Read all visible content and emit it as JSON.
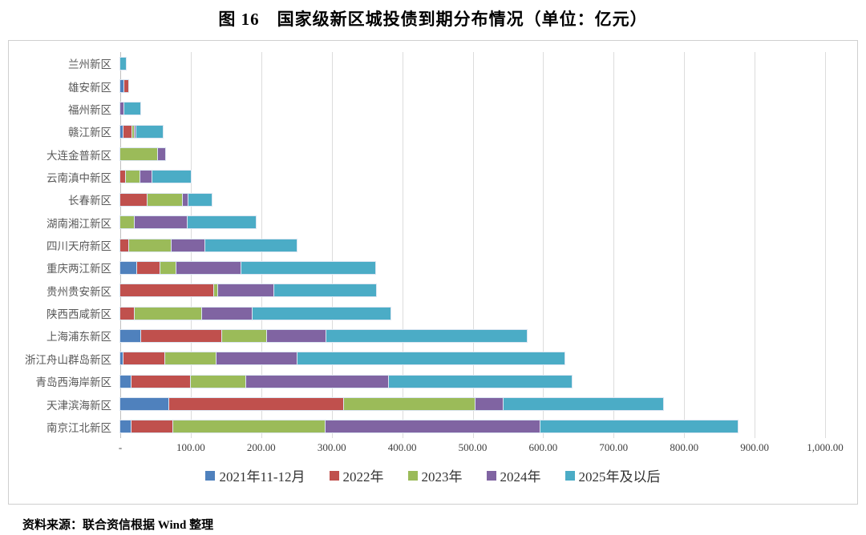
{
  "title": "图 16　国家级新区城投债到期分布情况（单位：亿元）",
  "source_note": "资料来源：联合资信根据 Wind 整理",
  "colors": {
    "series_blue": "#4F81BD",
    "series_red": "#C0504D",
    "series_green": "#9BBB59",
    "series_purple": "#8064A2",
    "series_teal": "#4BACC6",
    "gridline": "#dcdcdc",
    "axis_line": "#bfbfbf",
    "category_text": "#595959",
    "tick_text": "#404040"
  },
  "chart_data": {
    "type": "bar",
    "orientation": "horizontal",
    "stacked": true,
    "title": "图 16　国家级新区城投债到期分布情况（单位：亿元）",
    "xlabel": "",
    "ylabel": "",
    "xlim": [
      0,
      1000
    ],
    "grid": true,
    "legend_position": "bottom",
    "x_ticks": [
      "-",
      "100.00",
      "200.00",
      "300.00",
      "400.00",
      "500.00",
      "600.00",
      "700.00",
      "800.00",
      "900.00",
      "1,000.00"
    ],
    "x_tick_values": [
      0,
      100,
      200,
      300,
      400,
      500,
      600,
      700,
      800,
      900,
      1000
    ],
    "categories": [
      "兰州新区",
      "雄安新区",
      "福州新区",
      "赣江新区",
      "大连金普新区",
      "云南滇中新区",
      "长春新区",
      "湖南湘江新区",
      "四川天府新区",
      "重庆两江新区",
      "贵州贵安新区",
      "陕西西咸新区",
      "上海浦东新区",
      "浙江舟山群岛新区",
      "青岛西海岸新区",
      "天津滨海新区",
      "南京江北新区"
    ],
    "series": [
      {
        "name": "2021年11-12月",
        "color": "#4F81BD",
        "values": [
          0,
          6,
          0,
          4,
          0,
          0,
          0,
          0,
          0,
          24,
          0,
          0,
          30,
          5,
          16,
          69,
          16
        ]
      },
      {
        "name": "2022年",
        "color": "#C0504D",
        "values": [
          0,
          5,
          0,
          13,
          0,
          8,
          39,
          0,
          13,
          33,
          133,
          20,
          115,
          59,
          84,
          248,
          59
        ]
      },
      {
        "name": "2023年",
        "color": "#9BBB59",
        "values": [
          0,
          0,
          0,
          3,
          54,
          21,
          50,
          20,
          60,
          23,
          6,
          96,
          63,
          73,
          79,
          187,
          216
        ]
      },
      {
        "name": "2024年",
        "color": "#8064A2",
        "values": [
          0,
          0,
          6,
          3,
          10,
          16,
          8,
          75,
          48,
          92,
          79,
          72,
          84,
          115,
          202,
          40,
          305
        ]
      },
      {
        "name": "2025年及以后",
        "color": "#4BACC6",
        "values": [
          8,
          0,
          23,
          37,
          0,
          55,
          33,
          97,
          129,
          190,
          145,
          195,
          285,
          378,
          260,
          226,
          280
        ]
      }
    ]
  }
}
